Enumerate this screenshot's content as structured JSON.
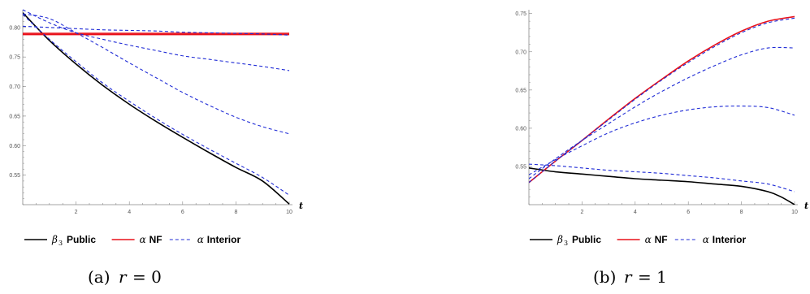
{
  "chart_data": [
    {
      "type": "line",
      "caption_prefix": "(a)",
      "caption_var": "r",
      "caption_eq": "= 0",
      "xlabel": "t",
      "xlim": [
        0,
        10
      ],
      "ylim": [
        0.5,
        0.83
      ],
      "xticks": [
        "2",
        "4",
        "6",
        "8",
        "10"
      ],
      "yticks": [
        "0.55",
        "0.60",
        "0.65",
        "0.70",
        "0.75",
        "0.80"
      ],
      "series": [
        {
          "name": "Public",
          "legend_symbol": "β",
          "legend_sub": "3",
          "color": "#000000",
          "dash": "none",
          "x": [
            0,
            1,
            2,
            3,
            4,
            5,
            6,
            7,
            8,
            9,
            10
          ],
          "y": [
            0.825,
            0.778,
            0.738,
            0.702,
            0.67,
            0.641,
            0.614,
            0.588,
            0.563,
            0.54,
            0.501
          ]
        },
        {
          "name": "NF",
          "legend_symbol": "α",
          "color": "#e8101a",
          "dash": "none",
          "x": [
            0,
            2,
            4,
            6,
            8,
            10
          ],
          "y": [
            0.79,
            0.79,
            0.79,
            0.79,
            0.79,
            0.79
          ]
        },
        {
          "name": "NF-lower",
          "legend": false,
          "color": "#e8101a",
          "dash": "none",
          "x": [
            0,
            2,
            4,
            6,
            8,
            10
          ],
          "y": [
            0.788,
            0.788,
            0.788,
            0.788,
            0.788,
            0.788
          ]
        },
        {
          "name": "Interior",
          "legend_symbol": "α",
          "color": "#1f2bd6",
          "dash": "4,3",
          "x": [
            0,
            1,
            2,
            3,
            4,
            5,
            6,
            7,
            8,
            9,
            10
          ],
          "y": [
            0.802,
            0.8,
            0.798,
            0.796,
            0.795,
            0.794,
            0.792,
            0.791,
            0.79,
            0.789,
            0.787
          ]
        },
        {
          "name": "Interior-2",
          "legend": false,
          "color": "#1f2bd6",
          "dash": "4,3",
          "x": [
            0,
            1,
            2,
            3,
            4,
            5,
            6,
            7,
            8,
            9,
            10
          ],
          "y": [
            0.83,
            0.808,
            0.791,
            0.78,
            0.77,
            0.761,
            0.752,
            0.746,
            0.74,
            0.734,
            0.727
          ]
        },
        {
          "name": "Interior-3",
          "legend": false,
          "color": "#1f2bd6",
          "dash": "4,3",
          "x": [
            0,
            1,
            2,
            3,
            4,
            5,
            6,
            7,
            8,
            9,
            10
          ],
          "y": [
            0.823,
            0.815,
            0.791,
            0.766,
            0.74,
            0.715,
            0.69,
            0.668,
            0.648,
            0.632,
            0.62
          ]
        },
        {
          "name": "Interior-4",
          "legend": false,
          "color": "#1f2bd6",
          "dash": "4,3",
          "x": [
            0,
            1,
            2,
            3,
            4,
            5,
            6,
            7,
            8,
            9,
            10
          ],
          "y": [
            0.822,
            0.78,
            0.742,
            0.706,
            0.675,
            0.646,
            0.619,
            0.594,
            0.57,
            0.546,
            0.516
          ]
        }
      ]
    },
    {
      "type": "line",
      "caption_prefix": "(b)",
      "caption_var": "r",
      "caption_eq": "= 1",
      "xlabel": "t",
      "xlim": [
        0,
        10
      ],
      "ylim": [
        0.5,
        0.755
      ],
      "xticks": [
        "2",
        "4",
        "6",
        "8",
        "10"
      ],
      "yticks": [
        "0.55",
        "0.60",
        "0.65",
        "0.70",
        "0.75"
      ],
      "series": [
        {
          "name": "Public",
          "legend_symbol": "β",
          "legend_sub": "3",
          "color": "#000000",
          "dash": "none",
          "x": [
            0,
            1,
            2,
            3,
            4,
            5,
            6,
            7,
            8,
            9,
            9.5,
            10
          ],
          "y": [
            0.548,
            0.543,
            0.54,
            0.537,
            0.534,
            0.532,
            0.53,
            0.527,
            0.524,
            0.517,
            0.51,
            0.5
          ]
        },
        {
          "name": "NF",
          "legend_symbol": "α",
          "color": "#e8101a",
          "dash": "none",
          "x": [
            0,
            1,
            2,
            3,
            4,
            5,
            6,
            7,
            8,
            9,
            10
          ],
          "y": [
            0.529,
            0.557,
            0.584,
            0.612,
            0.639,
            0.664,
            0.688,
            0.709,
            0.727,
            0.74,
            0.746
          ]
        },
        {
          "name": "Interior",
          "legend_symbol": "α",
          "color": "#1f2bd6",
          "dash": "4,3",
          "x": [
            0,
            1,
            2,
            3,
            4,
            5,
            6,
            7,
            8,
            9,
            10
          ],
          "y": [
            0.529,
            0.557,
            0.584,
            0.611,
            0.638,
            0.663,
            0.686,
            0.707,
            0.725,
            0.738,
            0.744
          ]
        },
        {
          "name": "Interior-2",
          "legend": false,
          "color": "#1f2bd6",
          "dash": "4,3",
          "x": [
            0,
            1,
            2,
            3,
            4,
            5,
            6,
            7,
            8,
            9,
            10
          ],
          "y": [
            0.534,
            0.56,
            0.584,
            0.606,
            0.628,
            0.648,
            0.666,
            0.682,
            0.696,
            0.705,
            0.705
          ]
        },
        {
          "name": "Interior-3",
          "legend": false,
          "color": "#1f2bd6",
          "dash": "4,3",
          "x": [
            0,
            1,
            2,
            3,
            4,
            5,
            6,
            7,
            8,
            9,
            10
          ],
          "y": [
            0.539,
            0.559,
            0.577,
            0.594,
            0.607,
            0.617,
            0.624,
            0.628,
            0.629,
            0.627,
            0.617
          ]
        },
        {
          "name": "Interior-4",
          "legend": false,
          "color": "#1f2bd6",
          "dash": "4,3",
          "x": [
            0,
            1,
            2,
            3,
            4,
            5,
            6,
            7,
            8,
            9,
            10
          ],
          "y": [
            0.553,
            0.551,
            0.548,
            0.545,
            0.543,
            0.541,
            0.538,
            0.535,
            0.531,
            0.527,
            0.517
          ]
        }
      ]
    }
  ]
}
